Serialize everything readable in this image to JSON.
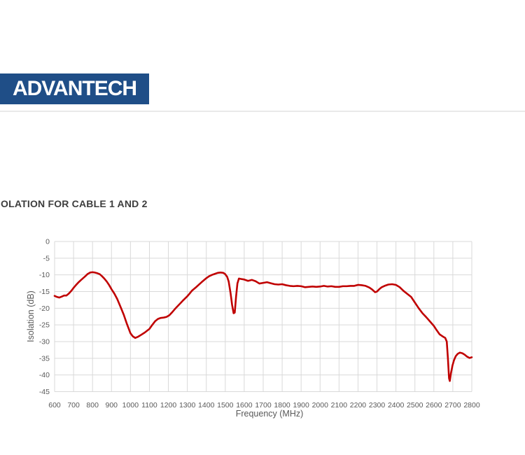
{
  "header": {
    "logo_text": "ADVANTECH",
    "logo_bg": "#1f4e87",
    "logo_text_color": "#ffffff"
  },
  "section": {
    "title": "OLATION FOR CABLE 1 AND 2"
  },
  "chart_data": {
    "type": "line",
    "title": "",
    "xlabel": "Frequency (MHz)",
    "ylabel": "Isolation (dB)",
    "xlim": [
      600,
      2800
    ],
    "ylim": [
      -45,
      0
    ],
    "x_ticks": [
      600,
      700,
      800,
      900,
      1000,
      1100,
      1200,
      1300,
      1400,
      1500,
      1600,
      1700,
      1800,
      1900,
      2000,
      2100,
      2200,
      2300,
      2400,
      2500,
      2600,
      2700,
      2800
    ],
    "y_ticks": [
      0,
      -5,
      -10,
      -15,
      -20,
      -25,
      -30,
      -35,
      -40,
      -45
    ],
    "grid": true,
    "legend": false,
    "line_color": "#c00000",
    "gridline_color": "#d9d9d9",
    "tick_label_color": "#595959",
    "series": [
      {
        "x": [
          600,
          612,
          625,
          638,
          650,
          662,
          675,
          688,
          700,
          712,
          725,
          738,
          750,
          762,
          775,
          788,
          800,
          812,
          825,
          838,
          850,
          862,
          875,
          888,
          900,
          915,
          930,
          950,
          965,
          980,
          1000,
          1012,
          1025,
          1038,
          1050,
          1075,
          1100,
          1115,
          1130,
          1145,
          1160,
          1175,
          1190,
          1205,
          1220,
          1235,
          1250,
          1275,
          1300,
          1312,
          1325,
          1350,
          1375,
          1400,
          1415,
          1430,
          1445,
          1460,
          1475,
          1490,
          1500,
          1510,
          1518,
          1528,
          1536,
          1544,
          1550,
          1557,
          1564,
          1572,
          1580,
          1600,
          1620,
          1640,
          1660,
          1680,
          1700,
          1720,
          1740,
          1760,
          1780,
          1800,
          1820,
          1840,
          1860,
          1880,
          1900,
          1920,
          1940,
          1960,
          1980,
          2000,
          2020,
          2040,
          2060,
          2080,
          2100,
          2120,
          2140,
          2160,
          2180,
          2200,
          2220,
          2240,
          2260,
          2275,
          2290,
          2300,
          2312,
          2325,
          2340,
          2360,
          2380,
          2400,
          2420,
          2440,
          2460,
          2480,
          2500,
          2520,
          2540,
          2560,
          2580,
          2600,
          2615,
          2630,
          2645,
          2660,
          2668,
          2674,
          2680,
          2684,
          2690,
          2698,
          2706,
          2715,
          2725,
          2737,
          2750,
          2762,
          2775,
          2788,
          2800
        ],
        "y": [
          -16.3,
          -16.6,
          -16.8,
          -16.5,
          -16.2,
          -16.2,
          -15.6,
          -14.8,
          -13.9,
          -13.1,
          -12.3,
          -11.6,
          -11.0,
          -10.4,
          -9.7,
          -9.3,
          -9.2,
          -9.3,
          -9.5,
          -9.8,
          -10.4,
          -11.1,
          -12.0,
          -13.1,
          -14.3,
          -15.6,
          -17.2,
          -19.9,
          -22.0,
          -24.5,
          -27.5,
          -28.4,
          -28.9,
          -28.6,
          -28.2,
          -27.3,
          -26.2,
          -25.0,
          -23.9,
          -23.2,
          -22.9,
          -22.8,
          -22.6,
          -22.1,
          -21.2,
          -20.2,
          -19.3,
          -17.8,
          -16.4,
          -15.6,
          -14.7,
          -13.5,
          -12.2,
          -11.0,
          -10.4,
          -10.0,
          -9.7,
          -9.4,
          -9.3,
          -9.4,
          -9.8,
          -10.6,
          -12.0,
          -15.5,
          -19.0,
          -21.5,
          -21.3,
          -16.5,
          -12.6,
          -11.1,
          -11.2,
          -11.4,
          -11.8,
          -11.5,
          -11.9,
          -12.6,
          -12.4,
          -12.2,
          -12.5,
          -12.8,
          -12.9,
          -12.8,
          -13.1,
          -13.3,
          -13.4,
          -13.3,
          -13.4,
          -13.7,
          -13.6,
          -13.5,
          -13.6,
          -13.5,
          -13.3,
          -13.5,
          -13.4,
          -13.6,
          -13.6,
          -13.4,
          -13.4,
          -13.3,
          -13.3,
          -13.0,
          -13.1,
          -13.3,
          -13.8,
          -14.4,
          -15.2,
          -15.0,
          -14.3,
          -13.7,
          -13.3,
          -12.9,
          -12.8,
          -13.0,
          -13.7,
          -14.8,
          -15.7,
          -16.6,
          -18.3,
          -20.0,
          -21.5,
          -22.7,
          -24.0,
          -25.3,
          -26.6,
          -27.8,
          -28.4,
          -28.9,
          -30.0,
          -35.0,
          -41.0,
          -41.8,
          -39.5,
          -37.2,
          -35.6,
          -34.4,
          -33.7,
          -33.3,
          -33.5,
          -33.9,
          -34.5,
          -34.9,
          -34.7
        ]
      }
    ]
  }
}
